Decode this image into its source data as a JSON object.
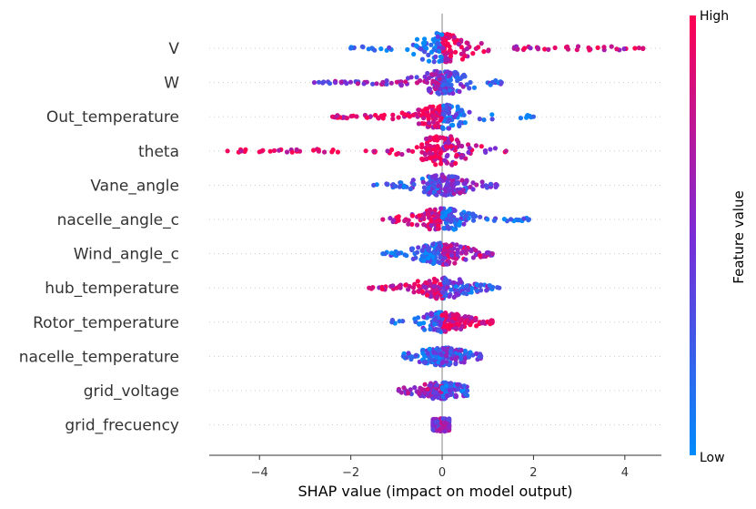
{
  "chart_data": {
    "type": "scatter",
    "subtype": "shap-beeswarm-summary",
    "xlabel": "SHAP value (impact on model output)",
    "x_ticks": [
      -4,
      -2,
      0,
      2,
      4
    ],
    "xlim": [
      -5.1,
      4.8
    ],
    "zero_line": true,
    "row_grid": "dotted",
    "colorbar": {
      "title": "Feature value",
      "high_label": "High",
      "low_label": "Low",
      "low_color": "#008bfb",
      "high_color": "#ff0052",
      "mid_color": "#7b2bd6"
    },
    "features": [
      {
        "name": "V",
        "min": -2.0,
        "max": 4.4,
        "skew": "right",
        "spread": 1.0,
        "low_side": "left",
        "pos_hi": 0.85,
        "neg_hi": 0.15
      },
      {
        "name": "W",
        "min": -2.8,
        "max": 1.3,
        "skew": "left",
        "spread": 0.65,
        "low_side": "left",
        "pos_hi": 0.35,
        "neg_hi": 0.55
      },
      {
        "name": "Out_temperature",
        "min": -2.4,
        "max": 2.0,
        "skew": "left",
        "spread": 0.7,
        "low_side": "right",
        "pos_hi": 0.2,
        "neg_hi": 0.9
      },
      {
        "name": "theta",
        "min": -4.7,
        "max": 1.4,
        "skew": "left",
        "spread": 1.0,
        "low_side": "right",
        "pos_hi": 0.75,
        "neg_hi": 0.95
      },
      {
        "name": "Vane_angle",
        "min": -1.5,
        "max": 1.2,
        "skew": "none",
        "spread": 0.5,
        "low_side": "left",
        "pos_hi": 0.45,
        "neg_hi": 0.3
      },
      {
        "name": "nacelle_angle_c",
        "min": -1.3,
        "max": 1.9,
        "skew": "right",
        "spread": 0.6,
        "low_side": "right",
        "pos_hi": 0.2,
        "neg_hi": 0.85
      },
      {
        "name": "Wind_angle_c",
        "min": -1.3,
        "max": 1.1,
        "skew": "none",
        "spread": 0.55,
        "low_side": "left",
        "pos_hi": 0.7,
        "neg_hi": 0.15
      },
      {
        "name": "hub_temperature",
        "min": -1.6,
        "max": 1.25,
        "skew": "none",
        "spread": 0.55,
        "low_side": "right",
        "pos_hi": 0.3,
        "neg_hi": 0.85
      },
      {
        "name": "Rotor_temperature",
        "min": -1.1,
        "max": 1.1,
        "skew": "right",
        "spread": 0.45,
        "low_side": "left",
        "pos_hi": 0.9,
        "neg_hi": 0.25
      },
      {
        "name": "nacelle_temperature",
        "min": -0.85,
        "max": 0.85,
        "skew": "none",
        "spread": 0.35,
        "low_side": "right",
        "pos_hi": 0.35,
        "neg_hi": 0.2
      },
      {
        "name": "grid_voltage",
        "min": -0.95,
        "max": 0.55,
        "skew": "none",
        "spread": 0.3,
        "low_side": "right",
        "pos_hi": 0.25,
        "neg_hi": 0.6
      },
      {
        "name": "grid_frecuency",
        "min": -0.2,
        "max": 0.15,
        "skew": "none",
        "spread": 0.1,
        "low_side": "none",
        "pos_hi": 0.55,
        "neg_hi": 0.5
      }
    ]
  }
}
